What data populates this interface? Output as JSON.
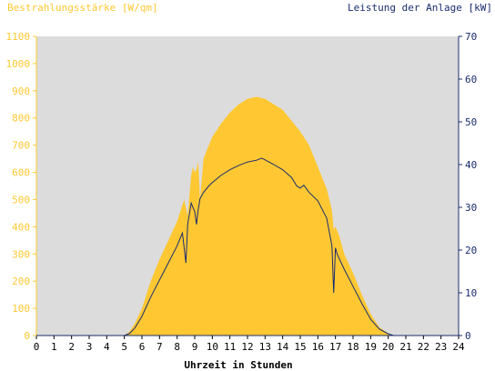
{
  "chart_data": {
    "type": "area",
    "title_left": "Bestrahlungsstärke [W/qm]",
    "title_right": "Leistung der Anlage [kW]",
    "xlabel": "Uhrzeit in Stunden",
    "xlim": [
      0,
      24
    ],
    "ylim_left": [
      0,
      1100
    ],
    "ylim_right": [
      0,
      70
    ],
    "x_ticks": [
      "0",
      "1",
      "2",
      "3",
      "4",
      "5",
      "6",
      "7",
      "8",
      "9",
      "10",
      "11",
      "12",
      "13",
      "14",
      "15",
      "16",
      "17",
      "18",
      "19",
      "20",
      "21",
      "22",
      "23",
      "24"
    ],
    "y_ticks_left": [
      "0",
      "100",
      "200",
      "300",
      "400",
      "500",
      "600",
      "700",
      "800",
      "900",
      "1000",
      "1100"
    ],
    "y_ticks_right": [
      "0",
      "10",
      "20",
      "30",
      "40",
      "50",
      "60",
      "70"
    ],
    "grid": false,
    "colors": {
      "background": "#dcdcdc",
      "irradiance": "#ffc832",
      "power": "#1a2c6e",
      "left_axis": "#ffc832",
      "right_axis": "#1a2c6e"
    },
    "series": [
      {
        "axis": "left",
        "kind": "area",
        "x": [
          0,
          5.0,
          5.3,
          5.6,
          6.0,
          6.5,
          7.0,
          7.5,
          8.0,
          8.4,
          8.6,
          8.8,
          8.9,
          9.0,
          9.1,
          9.2,
          9.3,
          9.5,
          9.8,
          10.0,
          10.5,
          11.0,
          11.5,
          12.0,
          12.5,
          13.0,
          13.5,
          14.0,
          14.5,
          15.0,
          15.5,
          16.0,
          16.5,
          16.8,
          16.9,
          17.0,
          17.2,
          17.5,
          18.0,
          18.5,
          19.0,
          19.5,
          20.0,
          20.3,
          24
        ],
        "y": [
          0,
          0,
          15,
          45,
          100,
          200,
          280,
          350,
          420,
          500,
          440,
          590,
          620,
          600,
          610,
          640,
          500,
          650,
          700,
          730,
          780,
          820,
          850,
          870,
          878,
          870,
          850,
          830,
          790,
          750,
          700,
          620,
          540,
          460,
          390,
          400,
          370,
          300,
          230,
          150,
          80,
          30,
          8,
          0,
          0
        ]
      },
      {
        "axis": "right",
        "kind": "line",
        "x": [
          0,
          5.0,
          5.3,
          5.6,
          6.0,
          6.5,
          7.0,
          7.5,
          8.0,
          8.3,
          8.5,
          8.6,
          8.8,
          9.0,
          9.1,
          9.2,
          9.3,
          9.5,
          9.8,
          10.0,
          10.5,
          11.0,
          11.5,
          12.0,
          12.5,
          12.8,
          13.0,
          13.5,
          14.0,
          14.5,
          14.8,
          15.0,
          15.2,
          15.5,
          16.0,
          16.5,
          16.8,
          16.9,
          17.0,
          17.1,
          17.5,
          18.0,
          18.5,
          19.0,
          19.5,
          20.0,
          20.3,
          24
        ],
        "y": [
          0,
          0,
          0.5,
          1.8,
          4.5,
          9.0,
          13.0,
          17.0,
          21.0,
          24.0,
          17.0,
          26.0,
          31.0,
          29.0,
          26.0,
          29.5,
          32.0,
          33.5,
          35.0,
          35.8,
          37.5,
          38.8,
          39.8,
          40.6,
          41.0,
          41.5,
          41.1,
          40.0,
          38.8,
          37.0,
          35.0,
          34.5,
          35.2,
          33.5,
          31.5,
          27.5,
          21.0,
          10.0,
          20.5,
          19.0,
          15.5,
          11.5,
          7.5,
          3.8,
          1.5,
          0.4,
          0,
          0
        ]
      }
    ]
  }
}
